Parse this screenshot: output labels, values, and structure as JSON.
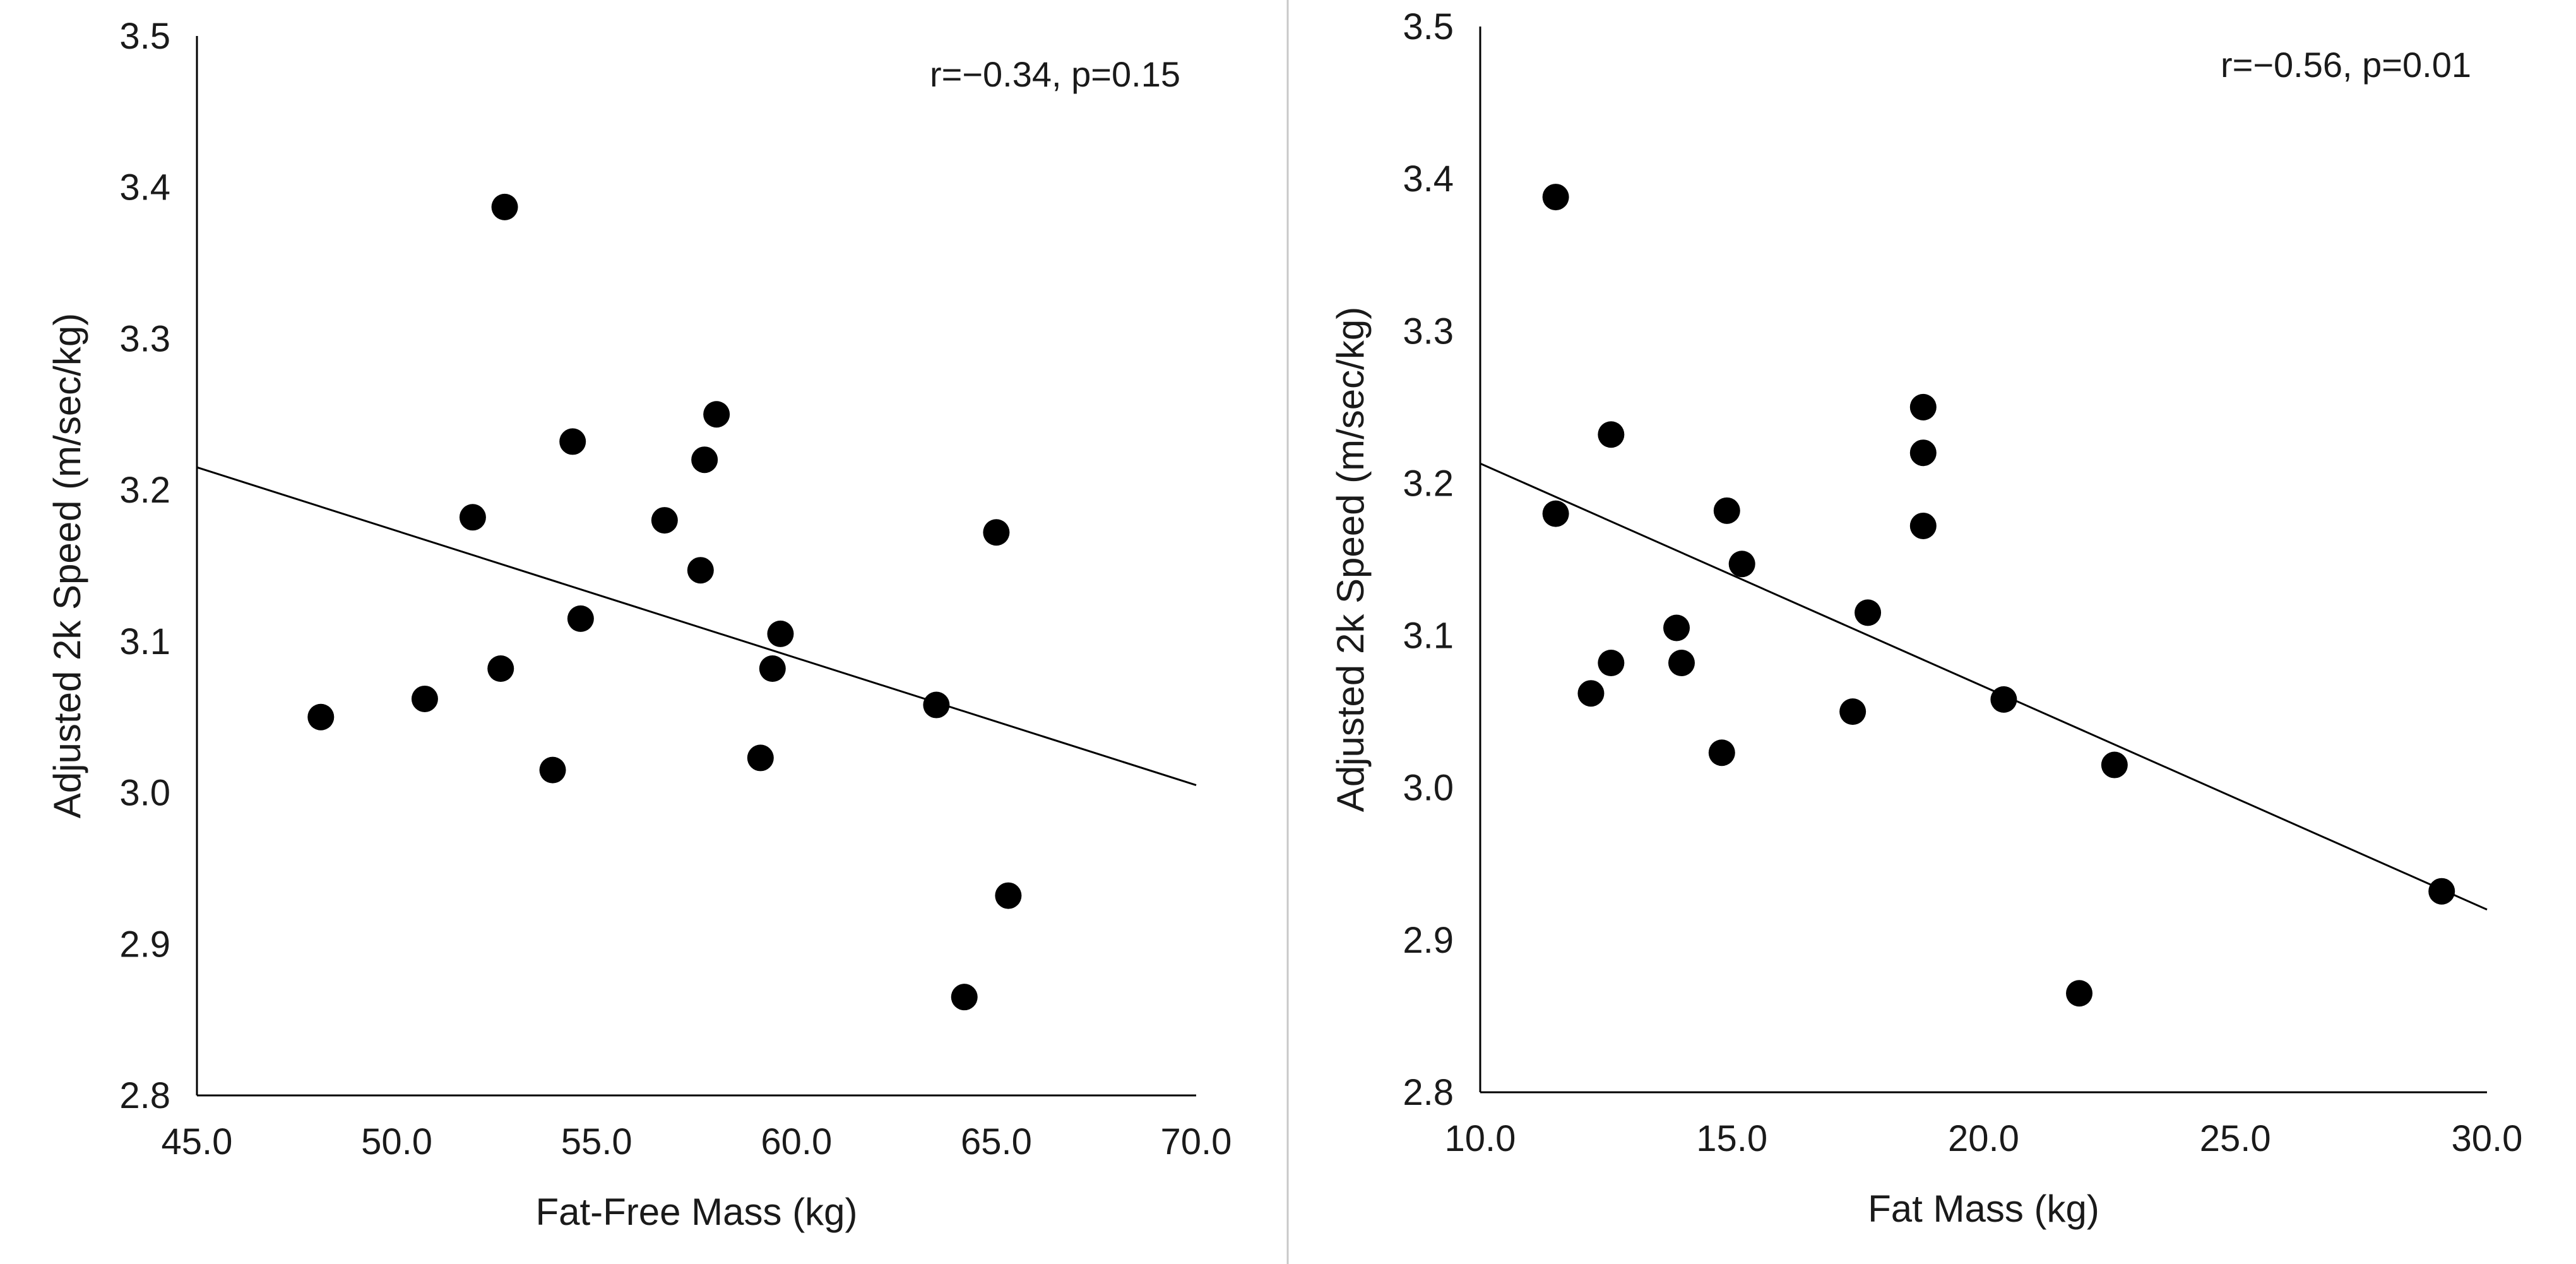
{
  "chart_data": [
    {
      "type": "scatter",
      "xlabel": "Fat-Free Mass (kg)",
      "ylabel": "Adjusted 2k Speed (m/sec/kg)",
      "xlim": [
        45.0,
        70.0
      ],
      "ylim": [
        2.8,
        3.5
      ],
      "x_ticks": [
        "45.0",
        "50.0",
        "55.0",
        "60.0",
        "65.0",
        "70.0"
      ],
      "y_ticks": [
        "2.8",
        "2.9",
        "3.0",
        "3.1",
        "3.2",
        "3.3",
        "3.4",
        "3.5"
      ],
      "annotation": "r=−0.34, p=0.15",
      "trendline": {
        "x": [
          45.0,
          70.0
        ],
        "y": [
          3.215,
          3.005
        ]
      },
      "points": [
        {
          "x": 48.1,
          "y": 3.05
        },
        {
          "x": 50.7,
          "y": 3.062
        },
        {
          "x": 51.9,
          "y": 3.182
        },
        {
          "x": 52.6,
          "y": 3.082
        },
        {
          "x": 52.7,
          "y": 3.387
        },
        {
          "x": 53.9,
          "y": 3.015
        },
        {
          "x": 54.4,
          "y": 3.232
        },
        {
          "x": 54.6,
          "y": 3.115
        },
        {
          "x": 56.7,
          "y": 3.18
        },
        {
          "x": 57.6,
          "y": 3.147
        },
        {
          "x": 57.7,
          "y": 3.22
        },
        {
          "x": 58.0,
          "y": 3.25
        },
        {
          "x": 59.1,
          "y": 3.023
        },
        {
          "x": 59.4,
          "y": 3.082
        },
        {
          "x": 59.6,
          "y": 3.105
        },
        {
          "x": 63.5,
          "y": 3.058
        },
        {
          "x": 64.2,
          "y": 2.865
        },
        {
          "x": 65.0,
          "y": 3.172
        },
        {
          "x": 65.3,
          "y": 2.932
        }
      ]
    },
    {
      "type": "scatter",
      "xlabel": "Fat Mass (kg)",
      "ylabel": "Adjusted 2k Speed (m/sec/kg)",
      "xlim": [
        10.0,
        30.0
      ],
      "ylim": [
        2.8,
        3.5
      ],
      "x_ticks": [
        "10.0",
        "15.0",
        "20.0",
        "25.0",
        "30.0"
      ],
      "y_ticks": [
        "2.8",
        "2.9",
        "3.0",
        "3.1",
        "3.2",
        "3.3",
        "3.4",
        "3.5"
      ],
      "annotation": "r=−0.56, p=0.01",
      "trendline": {
        "x": [
          10.0,
          30.0
        ],
        "y": [
          3.213,
          2.92
        ]
      },
      "points": [
        {
          "x": 11.5,
          "y": 3.388
        },
        {
          "x": 11.5,
          "y": 3.18
        },
        {
          "x": 12.2,
          "y": 3.062
        },
        {
          "x": 12.6,
          "y": 3.232
        },
        {
          "x": 12.6,
          "y": 3.082
        },
        {
          "x": 13.9,
          "y": 3.105
        },
        {
          "x": 14.0,
          "y": 3.082
        },
        {
          "x": 14.8,
          "y": 3.023
        },
        {
          "x": 14.9,
          "y": 3.182
        },
        {
          "x": 15.2,
          "y": 3.147
        },
        {
          "x": 17.4,
          "y": 3.05
        },
        {
          "x": 17.7,
          "y": 3.115
        },
        {
          "x": 18.8,
          "y": 3.25
        },
        {
          "x": 18.8,
          "y": 3.22
        },
        {
          "x": 18.8,
          "y": 3.172
        },
        {
          "x": 20.4,
          "y": 3.058
        },
        {
          "x": 21.9,
          "y": 2.865
        },
        {
          "x": 22.6,
          "y": 3.015
        },
        {
          "x": 29.1,
          "y": 2.932
        }
      ]
    }
  ]
}
